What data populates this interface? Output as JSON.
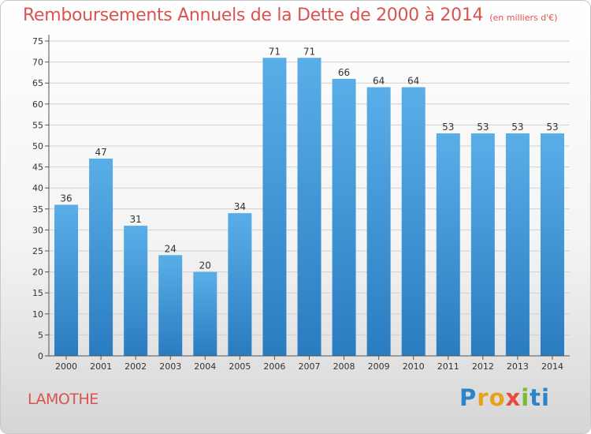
{
  "title": "Remboursements Annuels de la Dette de 2000 à 2014",
  "unit": "(en milliers d'€)",
  "commune": "LAMOTHE",
  "logo": {
    "p1": "P",
    "p2": "ro",
    "p3": "x",
    "p4": "i",
    "p5": "ti"
  },
  "colors": {
    "bar_top": "#5aaee8",
    "bar_bottom": "#2a7cc0",
    "title": "#d9534f",
    "grid": "#d0d0d0"
  },
  "chart_data": {
    "type": "bar",
    "title": "Remboursements Annuels de la Dette de 2000 à 2014",
    "xlabel": "",
    "ylabel": "",
    "categories": [
      "2000",
      "2001",
      "2002",
      "2003",
      "2004",
      "2005",
      "2006",
      "2007",
      "2008",
      "2009",
      "2010",
      "2011",
      "2012",
      "2013",
      "2014"
    ],
    "values": [
      36,
      47,
      31,
      24,
      20,
      34,
      71,
      71,
      66,
      64,
      64,
      53,
      53,
      53,
      53
    ],
    "ylim": [
      0,
      75
    ],
    "yticks": [
      0,
      5,
      10,
      15,
      20,
      25,
      30,
      35,
      40,
      45,
      50,
      55,
      60,
      65,
      70,
      75
    ],
    "grid": true
  }
}
